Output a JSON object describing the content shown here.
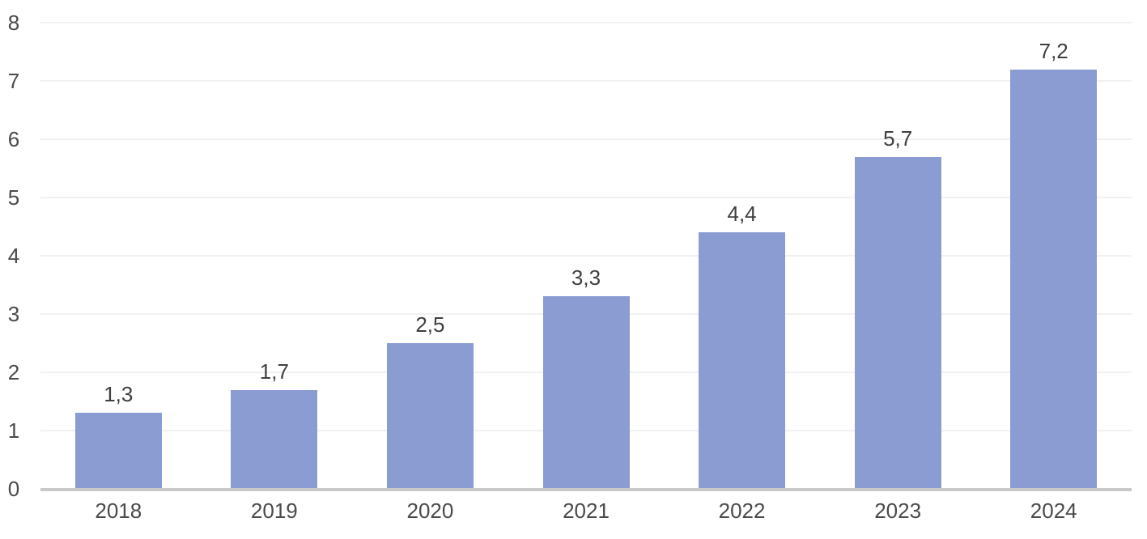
{
  "page": {
    "background": "#FFFFFF"
  },
  "chart_data": {
    "type": "bar",
    "title": "",
    "xlabel": "",
    "ylabel": "",
    "categories": [
      "2018",
      "2019",
      "2020",
      "2021",
      "2022",
      "2023",
      "2024"
    ],
    "values": [
      1.3,
      1.7,
      2.5,
      3.3,
      4.4,
      5.7,
      7.2
    ],
    "value_labels": [
      "1,3",
      "1,7",
      "2,5",
      "3,3",
      "4,4",
      "5,7",
      "7,2"
    ],
    "decimal_separator": ",",
    "ylim": [
      0,
      8
    ],
    "y_ticks": [
      "0",
      "1",
      "2",
      "3",
      "4",
      "5",
      "6",
      "7",
      "8"
    ],
    "grid": "horizontal",
    "legend": "none",
    "data_labels_position": "above-bars",
    "colors": {
      "bar_fill": "#8B9CD3",
      "axis_line": "#C9C9C9",
      "gridline": "#F1F1F1",
      "tick_label": "#4A4A4A",
      "data_label": "#3F3F3F",
      "background": "#FFFFFF"
    }
  }
}
